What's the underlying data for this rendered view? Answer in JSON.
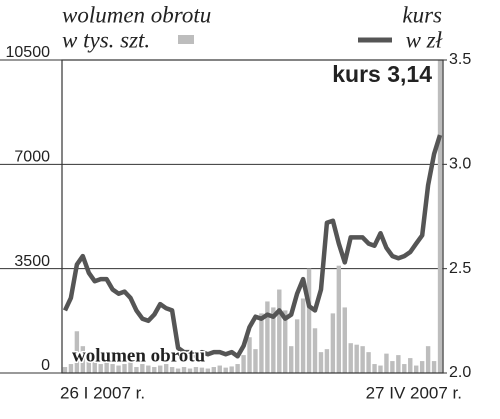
{
  "chart_data": {
    "type": "bar_line",
    "ylabel": "w tys. szt.",
    "y2label": "w zł",
    "annotations": [
      "kurs 3,14",
      "wolumen obrotu"
    ],
    "categories": [
      "26 I 2007 r.",
      null,
      null,
      null,
      null,
      null,
      null,
      null,
      null,
      null,
      null,
      null,
      null,
      null,
      null,
      null,
      null,
      null,
      null,
      null,
      null,
      null,
      null,
      null,
      null,
      null,
      null,
      null,
      null,
      null,
      null,
      null,
      null,
      null,
      null,
      null,
      null,
      null,
      null,
      null,
      null,
      null,
      null,
      null,
      null,
      null,
      null,
      null,
      null,
      null,
      null,
      null,
      null,
      null,
      null,
      null,
      null,
      null,
      null,
      null,
      null,
      null,
      null,
      "27 IV 2007 r."
    ],
    "series": [
      {
        "name": "wolumen obrotu",
        "type": "bar",
        "color": "#bdbdbd",
        "values": [
          200,
          300,
          1400,
          900,
          400,
          500,
          300,
          400,
          300,
          250,
          300,
          350,
          200,
          300,
          250,
          200,
          250,
          300,
          200,
          150,
          200,
          150,
          200,
          180,
          150,
          200,
          250,
          180,
          220,
          300,
          600,
          1200,
          800,
          2000,
          2400,
          2200,
          2800,
          2100,
          900,
          1800,
          2500,
          3500,
          1500,
          700,
          800,
          2000,
          3600,
          2200,
          1000,
          950,
          900,
          700,
          300,
          250,
          650,
          400,
          600,
          300,
          500,
          250,
          400,
          900,
          400,
          10500
        ]
      },
      {
        "name": "kurs",
        "type": "line",
        "axis": "y2",
        "color": "#555555",
        "values": [
          2.3,
          2.36,
          2.52,
          2.56,
          2.48,
          2.44,
          2.45,
          2.45,
          2.4,
          2.38,
          2.39,
          2.36,
          2.3,
          2.26,
          2.25,
          2.28,
          2.33,
          2.31,
          2.3,
          2.12,
          2.1,
          2.1,
          2.08,
          2.1,
          2.09,
          2.1,
          2.1,
          2.09,
          2.1,
          2.08,
          2.13,
          2.22,
          2.27,
          2.26,
          2.28,
          2.27,
          2.3,
          2.26,
          2.28,
          2.38,
          2.45,
          2.32,
          2.3,
          2.4,
          2.72,
          2.73,
          2.62,
          2.53,
          2.65,
          2.65,
          2.65,
          2.62,
          2.61,
          2.67,
          2.6,
          2.56,
          2.55,
          2.56,
          2.58,
          2.62,
          2.66,
          2.9,
          3.05,
          3.14
        ]
      }
    ],
    "ylim": [
      0,
      10500
    ],
    "yticks": [
      0,
      3500,
      7000,
      10500
    ],
    "y2lim": [
      2,
      3.5
    ],
    "y2ticks": [
      {
        "value": 2,
        "label": "2.0"
      },
      2.5,
      {
        "value": 3,
        "label": "3.0"
      },
      3.5
    ],
    "grid": true
  }
}
